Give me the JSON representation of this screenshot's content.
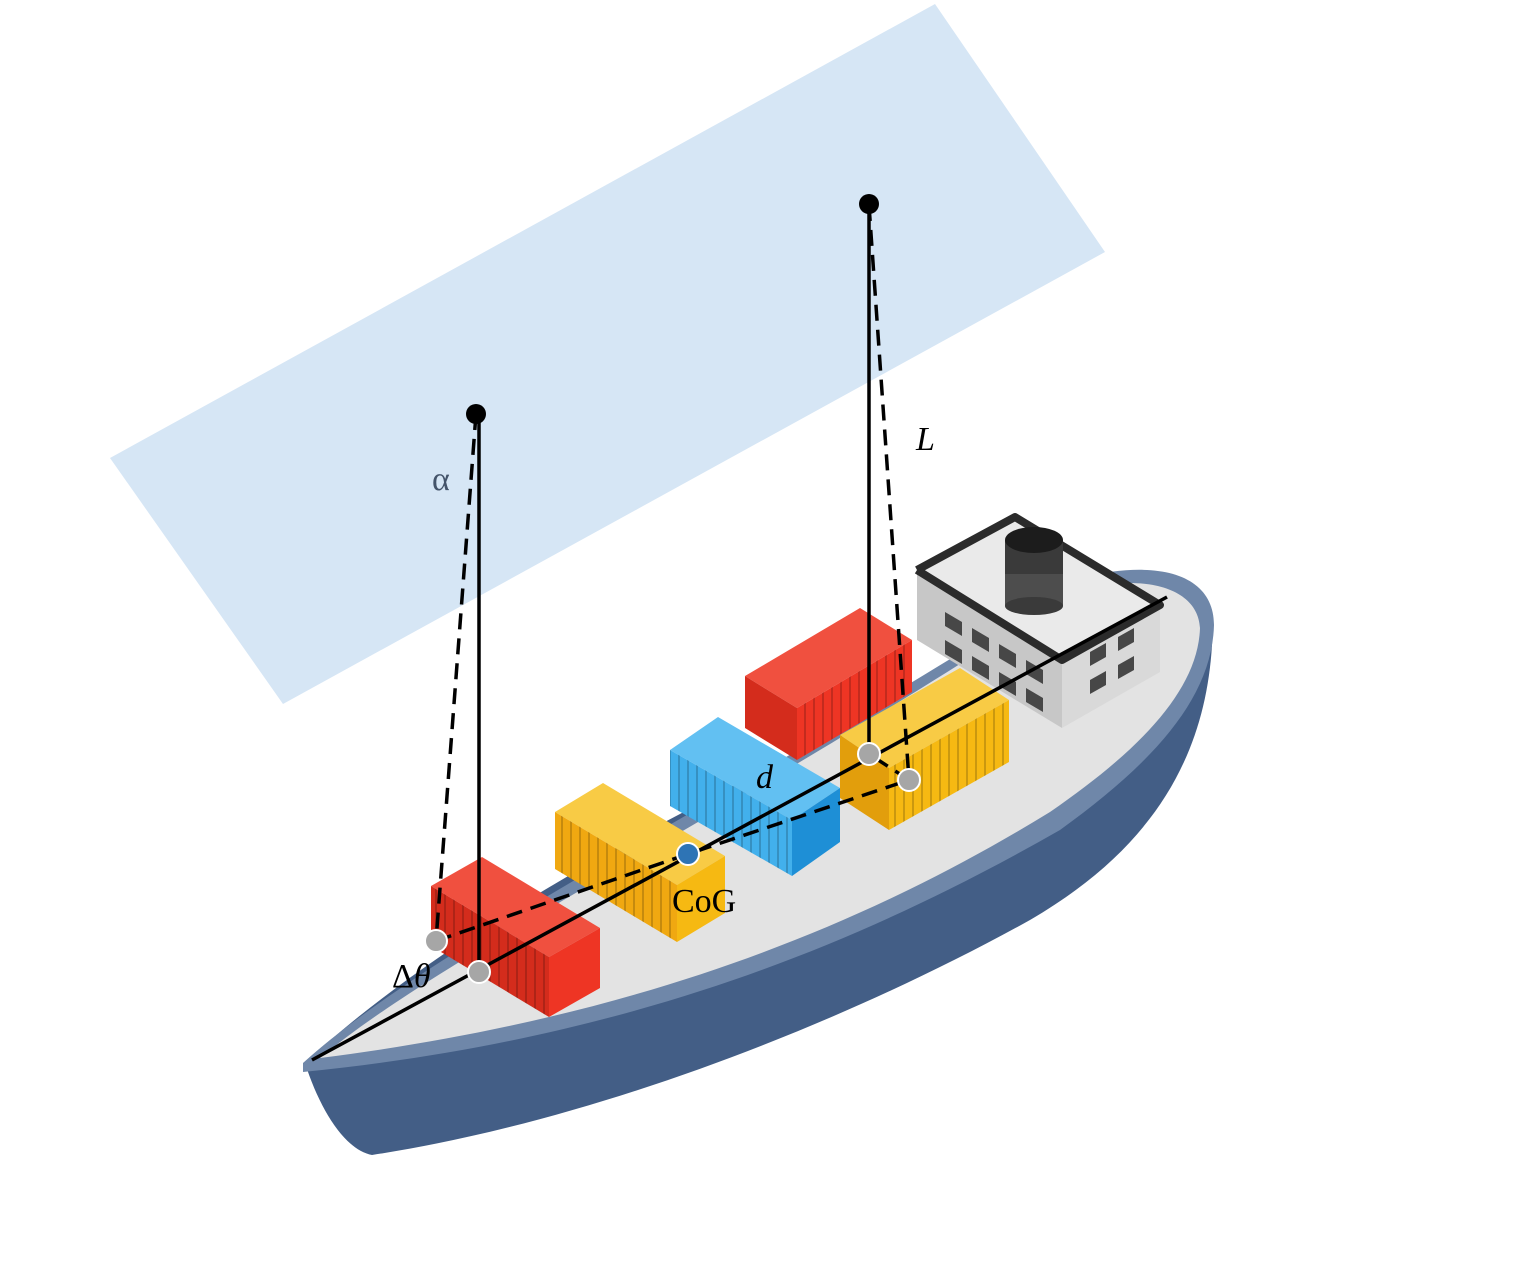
{
  "labels": {
    "alpha": "α",
    "length": "L",
    "delta_theta_prefix": "Δ",
    "delta_theta_var": "θ",
    "distance": "d",
    "cog": "CoG"
  },
  "colors": {
    "plane": "#d6e6f5",
    "hull_side": "#435e86",
    "hull_rim": "#6f87a9",
    "deck": "#e3e3e3",
    "container_red": "#ee3524",
    "container_yellow": "#f6b912",
    "container_blue": "#42b0ec",
    "bridge": "#d2d2d2",
    "funnel": "#2b2b2b",
    "attach_point": "#a6a6a6",
    "cog_point": "#2e74b5",
    "line": "#000000"
  }
}
